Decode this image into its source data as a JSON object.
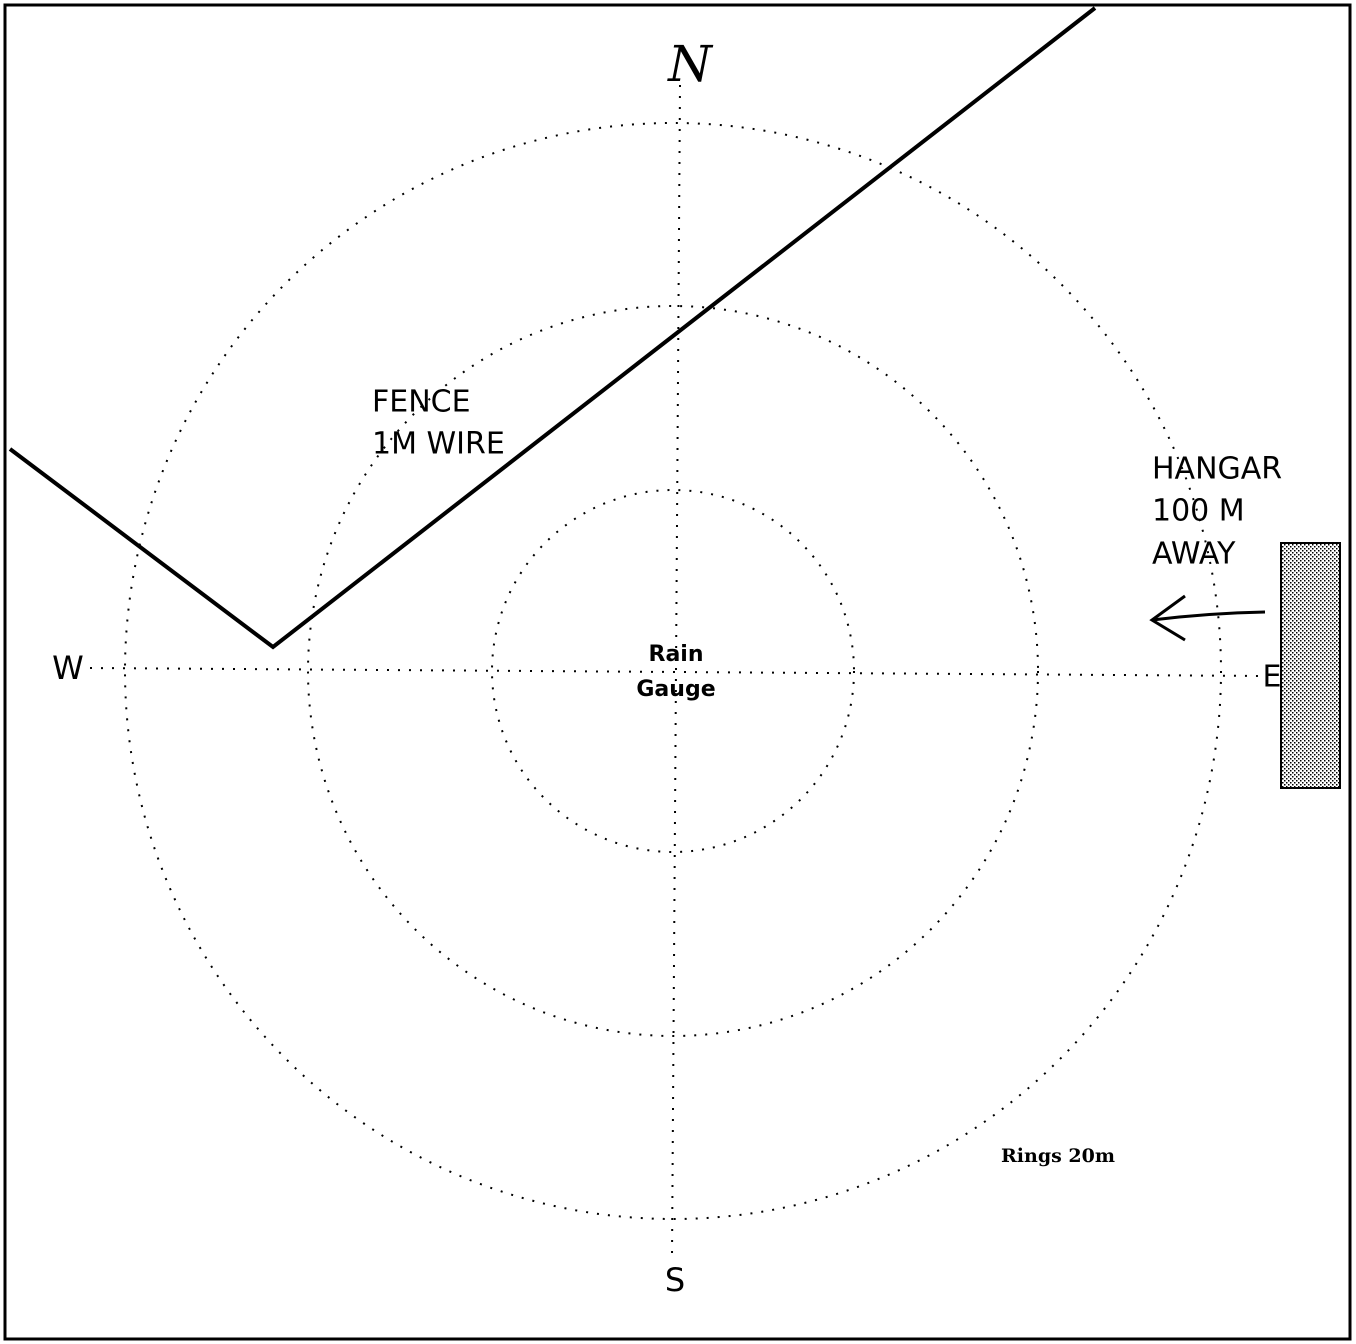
{
  "compass": {
    "north": "N",
    "south": "S",
    "west": "W",
    "east": "E"
  },
  "center": {
    "line1": "Rain",
    "line2": "Gauge"
  },
  "fence": {
    "line1": "FENCE",
    "line2": "1M WIRE"
  },
  "hangar": {
    "line1": "HANGAR",
    "line2": "100 M",
    "line3": "AWAY"
  },
  "scale_note": "Rings 20m"
}
